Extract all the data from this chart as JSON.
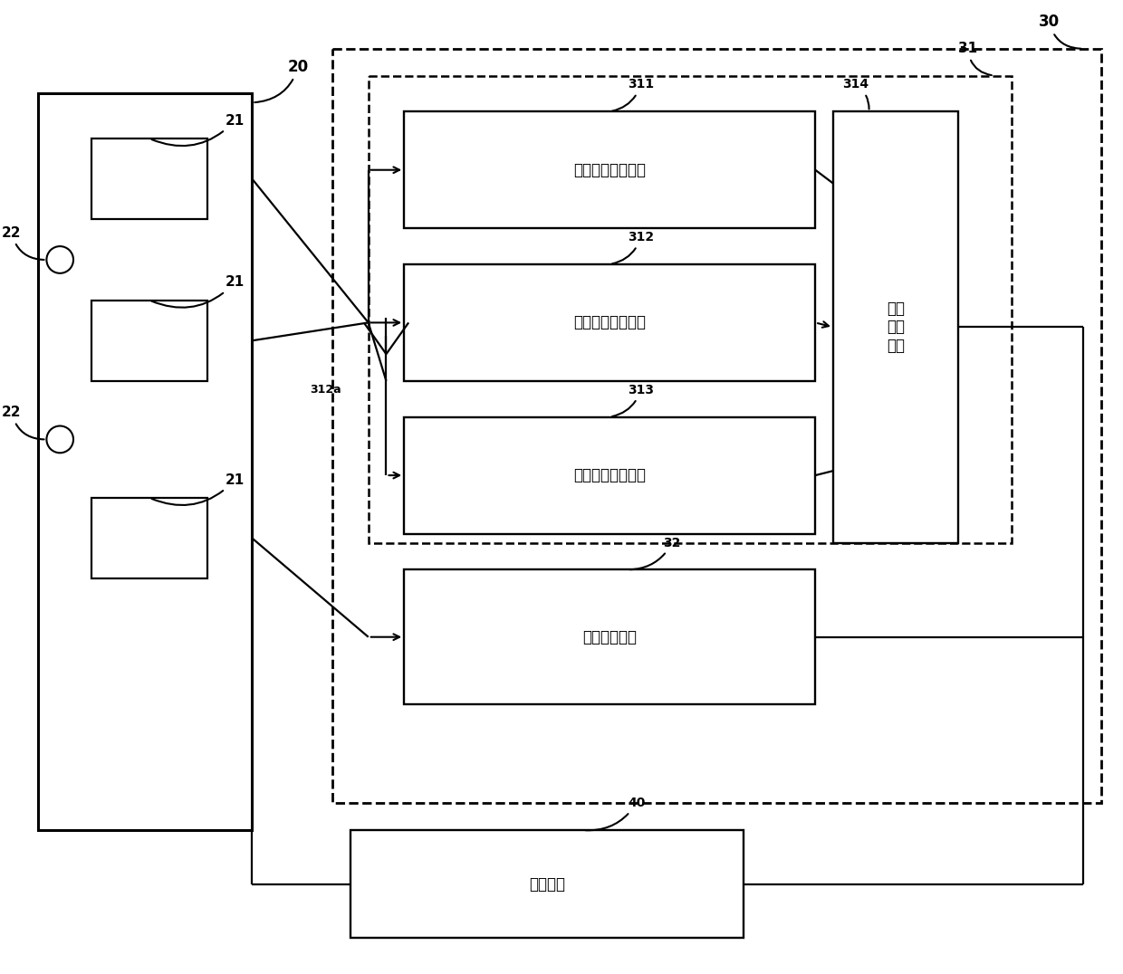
{
  "fig_w": 12.4,
  "fig_h": 10.76,
  "dpi": 100,
  "bg": "#ffffff",
  "labels": {
    "t311": "系统干扰检测模块",
    "t312": "低频干扰检测模块",
    "t313": "高频干扰检测模块",
    "t314": "检测\n控制\n模块",
    "t32": "按键检测单元",
    "t40": "控制单元"
  },
  "nums": {
    "n20": "20",
    "n21": "21",
    "n22": "22",
    "n30": "30",
    "n31": "31",
    "n311": "311",
    "n312": "312",
    "n313": "313",
    "n314": "314",
    "n312a": "312a",
    "n32": "32",
    "n40": "40"
  }
}
